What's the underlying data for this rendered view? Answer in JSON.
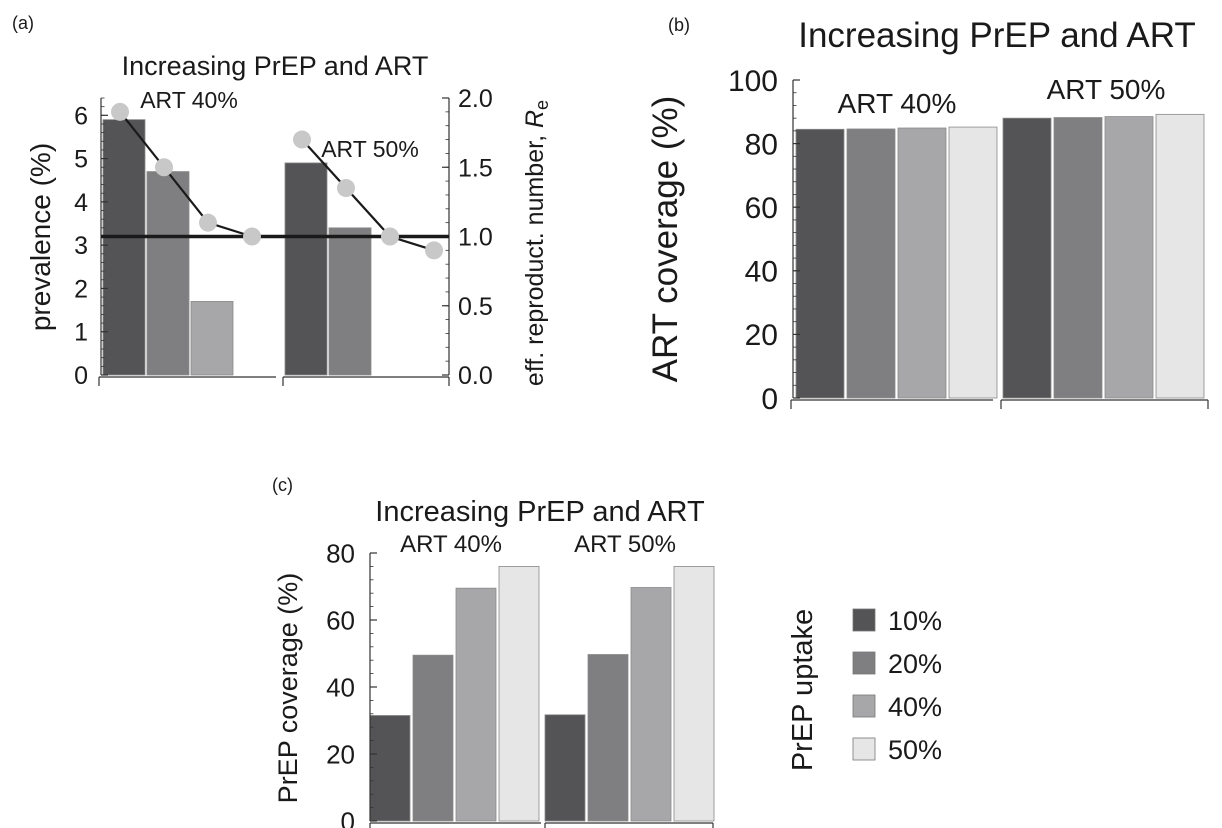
{
  "chart_data": [
    {
      "panel_label": "(a)",
      "type": "bar",
      "title": "Increasing PrEP and ART",
      "groups": [
        "ART 40%",
        "ART 50%"
      ],
      "series_labels": [
        "10%",
        "20%",
        "40%",
        "50%"
      ],
      "bars": [
        [
          5.9,
          4.7,
          1.7,
          0.0
        ],
        [
          4.9,
          3.4,
          0.0,
          0.0
        ]
      ],
      "ylabel": "prevalence (%)",
      "ylim": [
        0,
        6.4
      ],
      "yticks": [
        "0",
        "1",
        "2",
        "3",
        "4",
        "5",
        "6"
      ],
      "secondary_axis": {
        "label": "eff. reproduct. number, ",
        "label_symbol": "R",
        "label_sub": "e",
        "ylim": [
          0,
          2.0
        ],
        "ticks": [
          "0.0",
          "0.5",
          "1.0",
          "1.5",
          "2.0"
        ],
        "points": [
          [
            1.9,
            1.5,
            1.1,
            1.0
          ],
          [
            1.7,
            1.35,
            1.0,
            0.9
          ]
        ],
        "threshold": 1.0
      }
    },
    {
      "panel_label": "(b)",
      "type": "bar",
      "title": "Increasing PrEP and ART",
      "groups": [
        "ART 40%",
        "ART 50%"
      ],
      "series_labels": [
        "10%",
        "20%",
        "40%",
        "50%"
      ],
      "bars": [
        [
          84.5,
          84.6,
          84.9,
          85.2
        ],
        [
          88.0,
          88.2,
          88.5,
          89.2
        ]
      ],
      "ylabel": "ART coverage (%)",
      "ylim": [
        0,
        100
      ],
      "yticks": [
        "0",
        "20",
        "40",
        "60",
        "80",
        "100"
      ]
    },
    {
      "panel_label": "(c)",
      "type": "bar",
      "title": "Increasing PrEP and ART",
      "groups": [
        "ART 40%",
        "ART 50%"
      ],
      "series_labels": [
        "10%",
        "20%",
        "40%",
        "50%"
      ],
      "bars": [
        [
          31.5,
          49.5,
          69.5,
          76.0
        ],
        [
          31.7,
          49.7,
          69.7,
          76.0
        ]
      ],
      "ylabel": "PrEP coverage (%)",
      "ylim": [
        0,
        80
      ],
      "yticks": [
        "0",
        "20",
        "40",
        "60",
        "80"
      ]
    }
  ],
  "legend": {
    "title": "PrEP uptake",
    "items": [
      {
        "label": "10%",
        "color": "#545456"
      },
      {
        "label": "20%",
        "color": "#7f7f81"
      },
      {
        "label": "40%",
        "color": "#a7a7a9"
      },
      {
        "label": "50%",
        "color": "#e6e6e7"
      }
    ]
  },
  "colors": {
    "series": [
      "#545456",
      "#7f7f81",
      "#a7a7a9",
      "#e6e6e7"
    ],
    "marker": "#c8c8c8",
    "axis": "#333333"
  }
}
